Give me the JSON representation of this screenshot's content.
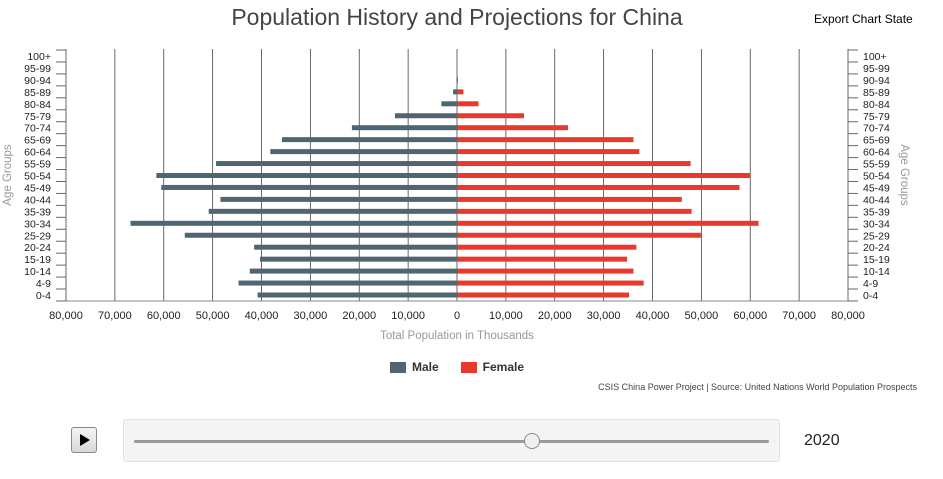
{
  "header": {
    "title": "Population History and Projections for China",
    "export_label": "Export Chart State"
  },
  "chart_data": {
    "type": "bar",
    "orientation": "horizontal",
    "title": "Population History and Projections for China",
    "xlabel": "Total Population in Thousands",
    "ylabel": "Age Groups",
    "xlim": [
      -80000,
      80000
    ],
    "x_ticks": [
      -80000,
      -70000,
      -60000,
      -50000,
      -40000,
      -30000,
      -20000,
      -10000,
      0,
      10000,
      20000,
      30000,
      40000,
      50000,
      60000,
      70000,
      80000
    ],
    "x_tick_labels": [
      "80,000",
      "70,000",
      "60,000",
      "50,000",
      "40,000",
      "30,000",
      "20,000",
      "10,000",
      "0",
      "10,000",
      "20,000",
      "30,000",
      "40,000",
      "50,000",
      "60,000",
      "70,000",
      "80,000"
    ],
    "categories": [
      "100+",
      "95-99",
      "90-94",
      "85-89",
      "80-84",
      "75-79",
      "70-74",
      "65-69",
      "60-64",
      "55-59",
      "50-54",
      "45-49",
      "40-44",
      "35-39",
      "30-34",
      "25-29",
      "20-24",
      "15-19",
      "10-14",
      "4-9",
      "0-4"
    ],
    "grid": true,
    "legend_position": "bottom-center",
    "series": [
      {
        "name": "Male",
        "color": "#4f6570",
        "values": [
          0,
          0,
          100,
          800,
          3200,
          12700,
          21500,
          35800,
          38200,
          49300,
          61500,
          60500,
          48400,
          50800,
          66800,
          55700,
          41500,
          40300,
          42400,
          44700,
          40800
        ]
      },
      {
        "name": "Female",
        "color": "#e8392c",
        "values": [
          0,
          0,
          200,
          1300,
          4400,
          13700,
          22700,
          36100,
          37300,
          47800,
          60000,
          57800,
          46000,
          48000,
          61700,
          49900,
          36700,
          34800,
          36100,
          38200,
          35200
        ]
      }
    ]
  },
  "legend": {
    "male": "Male",
    "female": "Female"
  },
  "source": "CSIS China Power Project | Source: United Nations World Population Prospects",
  "controls": {
    "year": "2020",
    "slider_position": 0.625
  }
}
